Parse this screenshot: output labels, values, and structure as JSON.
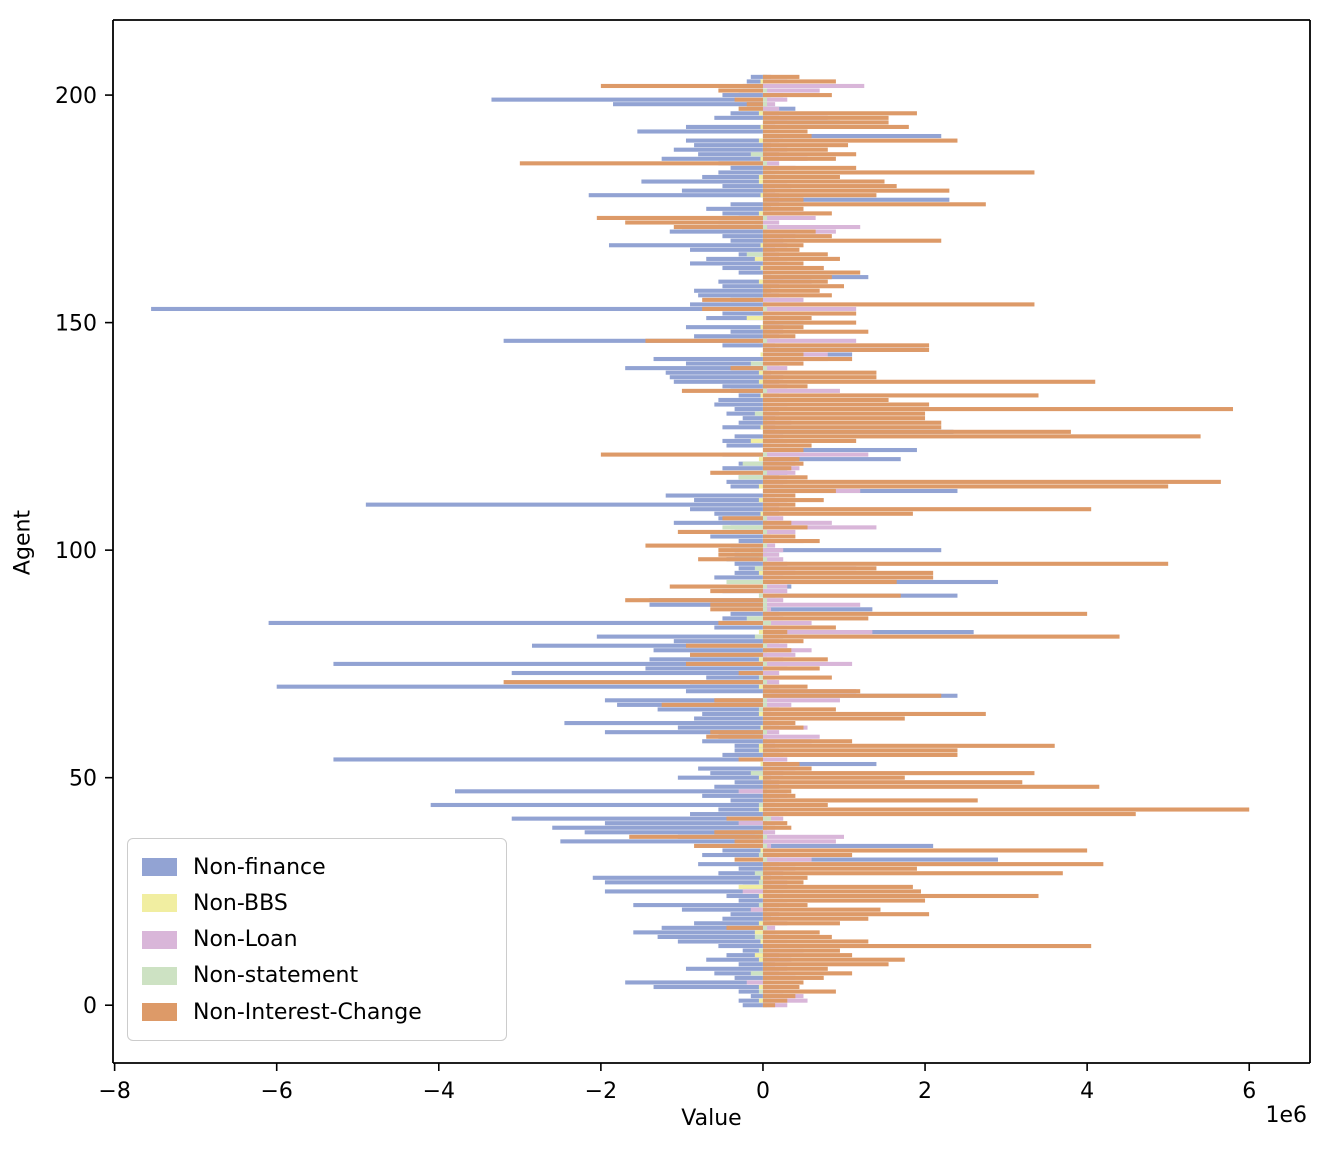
{
  "figure": {
    "xlabel": "Value",
    "ylabel": "Agent",
    "offset_text": "1e6"
  },
  "chart_data": {
    "type": "bar",
    "orientation": "horizontal",
    "title": "",
    "xlabel": "Value",
    "ylabel": "Agent",
    "unit": "1e6",
    "grid": false,
    "legend_position": "lower left",
    "xlim": [
      -8.02,
      6.75
    ],
    "ylim": [
      -12.7,
      216.5
    ],
    "xticks": [
      -8,
      -6,
      -4,
      -2,
      0,
      2,
      4,
      6
    ],
    "xtick_labels": [
      "−8",
      "−6",
      "−4",
      "−2",
      "0",
      "2",
      "4",
      "6"
    ],
    "yticks": [
      0,
      50,
      100,
      150,
      200
    ],
    "ytick_labels": [
      "0",
      "50",
      "100",
      "150",
      "200"
    ],
    "categories_note": "agents 0..204, one horizontal bar row per agent, values in millions (1e6)",
    "agent_count": 205,
    "series": [
      {
        "name": "Non-finance",
        "color": "#92a3d3",
        "values": [
          -0.25,
          -0.3,
          -0.15,
          -0.3,
          -1.35,
          -1.7,
          -0.35,
          -0.6,
          -0.95,
          -0.3,
          -0.7,
          -0.45,
          -0.25,
          -0.55,
          -1.05,
          -1.3,
          -1.6,
          -1.25,
          -0.85,
          -0.5,
          -0.4,
          -1.0,
          -1.6,
          -0.3,
          -0.45,
          -1.95,
          -0.25,
          -1.95,
          -2.1,
          -0.55,
          -0.3,
          -0.8,
          2.9,
          -0.75,
          -0.5,
          2.1,
          -2.5,
          -1.05,
          -2.2,
          -2.6,
          -1.95,
          -3.1,
          -0.9,
          -0.55,
          -4.1,
          -0.4,
          -0.75,
          -3.8,
          -0.6,
          -0.35,
          -1.05,
          -0.65,
          -0.8,
          1.4,
          -5.3,
          -0.5,
          -0.35,
          -0.35,
          -0.75,
          -0.55,
          -1.95,
          -1.05,
          -2.45,
          -0.85,
          -0.75,
          -1.3,
          -1.8,
          -1.95,
          2.4,
          -0.95,
          -6.0,
          -0.9,
          -0.7,
          -3.1,
          -1.45,
          -5.3,
          -1.4,
          -0.9,
          -1.35,
          -2.85,
          -1.1,
          -2.05,
          2.6,
          -0.6,
          -6.1,
          -0.5,
          -0.4,
          1.35,
          -1.4,
          -1.4,
          2.4,
          -0.5,
          0.35,
          2.9,
          -0.6,
          -0.35,
          -0.3,
          -0.35,
          -0.45,
          -0.35,
          2.2,
          -0.4,
          -0.3,
          -0.65,
          -0.35,
          -0.4,
          -1.1,
          -0.55,
          -0.6,
          -0.9,
          -4.9,
          -0.85,
          -1.2,
          2.4,
          -0.4,
          -0.45,
          -0.3,
          0.3,
          -0.5,
          -0.3,
          1.7,
          -0.5,
          1.9,
          -0.45,
          -0.5,
          -0.35,
          2.35,
          -0.5,
          -0.3,
          -0.25,
          -0.45,
          -0.35,
          -0.6,
          -0.55,
          -0.3,
          -0.4,
          -0.5,
          -1.1,
          -1.15,
          -1.2,
          -1.7,
          -0.95,
          -1.35,
          1.1,
          2.0,
          -0.5,
          -3.2,
          -0.85,
          -0.4,
          -0.95,
          0.5,
          -0.7,
          -0.5,
          -7.55,
          -0.9,
          -0.4,
          -0.8,
          -0.85,
          -0.5,
          -0.55,
          1.3,
          -0.3,
          -0.5,
          -0.9,
          -0.7,
          -0.3,
          -0.9,
          -1.9,
          -0.4,
          -0.5,
          -1.15,
          -1.0,
          -0.55,
          -0.3,
          -0.5,
          -0.7,
          -0.4,
          2.3,
          -2.15,
          -1.0,
          -0.5,
          -1.5,
          -0.75,
          -0.55,
          -0.4,
          -0.55,
          -1.25,
          -0.8,
          -1.1,
          -0.85,
          -0.95,
          2.2,
          -1.55,
          -0.95,
          0.95,
          -0.6,
          -0.4,
          0.4,
          -1.85,
          -3.35,
          -0.5,
          -0.3,
          -0.25,
          -0.2,
          -0.15
        ]
      },
      {
        "name": "Non-BBS",
        "color": "#f1eea1",
        "values": [
          0.05,
          -0.05,
          0.05,
          0.03,
          -0.05,
          0.05,
          0.03,
          -0.03,
          0.05,
          0.03,
          -0.05,
          -0.1,
          0.05,
          0.03,
          -0.03,
          0.05,
          -0.1,
          0.03,
          -0.05,
          0.05,
          0.03,
          -0.03,
          0.05,
          0.03,
          -0.05,
          0.05,
          -0.3,
          0.03,
          -0.03,
          0.05,
          0.03,
          0.05,
          -0.05,
          0.03,
          -0.03,
          0.05,
          0.03,
          -0.05,
          0.05,
          0.03,
          -0.03,
          0.05,
          0.03,
          -0.05,
          0.05,
          0.05,
          0.03,
          -0.03,
          0.05,
          0.03,
          -0.05,
          0.05,
          0.03,
          -0.03,
          0.05,
          0.03,
          -0.05,
          -0.05,
          0.03,
          0.05,
          0.03,
          -0.03,
          0.05,
          0.03,
          -0.05,
          0.05,
          0.03,
          -0.03,
          0.05,
          0.03,
          -0.05,
          0.05,
          0.03,
          -0.03,
          0.05,
          0.03,
          -0.05,
          0.05,
          0.03,
          -0.03,
          0.05,
          0.03,
          -0.05,
          0.05,
          0.03,
          -0.03,
          0.05,
          0.03,
          0.05,
          -0.05,
          0.05,
          0.03,
          -0.03,
          0.05,
          0.03,
          -0.05,
          0.05,
          0.03,
          -0.05,
          0.05,
          0.03,
          -0.03,
          0.05,
          0.03,
          -0.05,
          0.05,
          0.03,
          0.05,
          -0.03,
          0.05,
          0.03,
          -0.05,
          0.05,
          0.03,
          -0.05,
          0.05,
          0.03,
          -0.03,
          0.05,
          0.03,
          -0.05,
          0.05,
          0.05,
          0.03,
          -0.15,
          0.05,
          0.03,
          -0.03,
          0.05,
          0.03,
          -0.05,
          0.05,
          0.05,
          0.03,
          -0.03,
          0.05,
          0.03,
          -0.05,
          0.05,
          -0.05,
          0.03,
          0.05,
          0.03,
          -0.03,
          0.05,
          0.03,
          -0.05,
          0.05,
          0.03,
          -0.03,
          0.05,
          -0.2,
          0.03,
          0.05,
          0.03,
          -0.03,
          0.05,
          0.05,
          0.03,
          -0.05,
          0.05,
          0.03,
          -0.03,
          0.05,
          -0.1,
          0.05,
          0.03,
          -0.03,
          0.05,
          0.03,
          0.05,
          -0.03,
          0.05,
          0.03,
          -0.05,
          0.05,
          0.05,
          0.03,
          -0.03,
          0.05,
          0.03,
          -0.05,
          -0.05,
          0.03,
          0.05,
          0.03,
          -0.03,
          0.05,
          0.03,
          0.05,
          -0.05,
          0.05,
          0.03,
          -0.03,
          0.05,
          0.03,
          -0.05,
          0.05,
          0.03,
          -0.03,
          0.05,
          0.05,
          0.03,
          -0.03,
          0.03
        ]
      },
      {
        "name": "Non-Loan",
        "color": "#d9b6d9",
        "values": [
          0.3,
          0.55,
          0.5,
          0.25,
          0.2,
          -0.2,
          0.4,
          0.2,
          0.3,
          0.15,
          0.35,
          0.2,
          0.5,
          0.2,
          0.3,
          0.2,
          0.15,
          0.15,
          0.3,
          0.1,
          0.2,
          -0.15,
          0.2,
          0.3,
          0.25,
          -0.25,
          0.3,
          0.3,
          0.1,
          0.25,
          0.4,
          0.2,
          0.6,
          0.2,
          0.15,
          0.1,
          0.9,
          1.0,
          0.15,
          0.15,
          -0.3,
          0.25,
          0.2,
          0.3,
          0.15,
          0.2,
          0.3,
          -0.3,
          0.2,
          0.2,
          0.1,
          0.25,
          0.4,
          0.1,
          0.3,
          0.25,
          0.2,
          0.15,
          0.6,
          0.7,
          0.2,
          0.55,
          0.2,
          0.15,
          0.1,
          0.2,
          0.35,
          0.95,
          0.3,
          1.15,
          0.2,
          0.2,
          0.15,
          0.2,
          0.3,
          1.1,
          0.25,
          0.4,
          0.6,
          0.3,
          0.2,
          0.25,
          1.35,
          0.3,
          0.6,
          0.25,
          0.2,
          0.1,
          1.2,
          0.25,
          0.15,
          0.3,
          0.3,
          0.2,
          0.25,
          0.4,
          1.15,
          0.3,
          0.25,
          0.2,
          0.25,
          0.15,
          0.5,
          0.1,
          0.4,
          1.4,
          0.85,
          0.25,
          0.2,
          0.2,
          0.2,
          0.3,
          0.15,
          1.2,
          0.25,
          0.3,
          0.2,
          0.4,
          0.45,
          0.4,
          0.2,
          1.3,
          0.45,
          0.3,
          0.2,
          0.25,
          0.2,
          0.15,
          0.35,
          0.15,
          0.2,
          0.2,
          0.3,
          0.2,
          0.2,
          0.95,
          0.3,
          0.2,
          0.25,
          0.1,
          0.3,
          0.2,
          0.8,
          0.8,
          0.2,
          0.15,
          1.15,
          0.2,
          0.25,
          0.25,
          0.2,
          0.15,
          0.2,
          1.15,
          0.5,
          0.5,
          0.2,
          0.1,
          0.2,
          0.6,
          0.25,
          0.1,
          0.75,
          0.3,
          0.2,
          0.2,
          0.15,
          0.3,
          0.25,
          0.4,
          0.9,
          1.2,
          0.2,
          0.65,
          0.5,
          0.1,
          0.2,
          0.25,
          0.2,
          0.15,
          0.35,
          0.3,
          0.15,
          0.2,
          0.4,
          0.2,
          0.55,
          0.2,
          0.3,
          0.1,
          0.2,
          0.25,
          0.2,
          0.15,
          0.3,
          0.8,
          0.2,
          0.2,
          0.15,
          0.3,
          0.25,
          0.7,
          1.25,
          0.3,
          0.1
        ]
      },
      {
        "name": "Non-statement",
        "color": "#cde2c3",
        "values": [
          0.05,
          0.1,
          0.1,
          -0.05,
          0.05,
          0.1,
          0.05,
          -0.15,
          0.05,
          0.1,
          0.05,
          0.05,
          -0.05,
          0.1,
          0.05,
          -0.1,
          0.05,
          0.05,
          0.1,
          0.05,
          0.1,
          0.05,
          -0.05,
          0.05,
          0.1,
          0.05,
          0.1,
          -0.05,
          0.05,
          -0.1,
          0.05,
          0.1,
          0.05,
          -0.05,
          0.1,
          0.05,
          -0.1,
          0.05,
          -0.1,
          0.05,
          0.05,
          0.1,
          0.05,
          0.05,
          -0.05,
          0.1,
          0.05,
          0.05,
          0.1,
          0.05,
          0.05,
          -0.15,
          0.05,
          0.05,
          -0.05,
          0.05,
          0.1,
          0.05,
          0.05,
          -0.1,
          0.05,
          0.05,
          0.1,
          0.05,
          0.05,
          -0.05,
          0.05,
          0.05,
          0.1,
          0.05,
          0.1,
          0.05,
          -0.05,
          -0.05,
          0.05,
          0.05,
          0.05,
          -0.1,
          0.05,
          0.05,
          0.05,
          -0.1,
          0.05,
          0.05,
          0.1,
          -0.2,
          0.05,
          0.05,
          0.05,
          0.05,
          -0.05,
          -0.05,
          0.05,
          -0.45,
          0.05,
          0.05,
          -0.1,
          0.05,
          0.05,
          -0.3,
          -0.15,
          0.05,
          0.05,
          0.05,
          0.05,
          -0.5,
          0.05,
          0.05,
          0.05,
          0.1,
          0.05,
          0.05,
          0.05,
          0.05,
          0.05,
          0.05,
          -0.3,
          0.05,
          0.05,
          -0.25,
          0.05,
          0.05,
          0.05,
          0.1,
          0.05,
          0.05,
          0.05,
          0.05,
          0.05,
          0.05,
          -0.1,
          0.05,
          0.05,
          0.1,
          0.05,
          0.05,
          0.05,
          0.05,
          0.05,
          0.05,
          0.05,
          -0.15,
          0.05,
          0.1,
          0.05,
          0.05,
          0.05,
          0.05,
          0.1,
          0.05,
          0.05,
          0.05,
          0.05,
          0.05,
          0.05,
          -0.1,
          0.05,
          0.05,
          0.1,
          0.05,
          0.05,
          0.05,
          0.05,
          0.05,
          0.05,
          -0.2,
          0.05,
          0.05,
          0.05,
          0.05,
          0.05,
          0.05,
          -0.1,
          0.05,
          0.05,
          0.1,
          0.05,
          0.05,
          0.05,
          0.05,
          0.05,
          0.05,
          0.05,
          0.1,
          0.05,
          0.05,
          0.05,
          -0.15,
          0.05,
          0.05,
          0.1,
          0.05,
          0.05,
          0.05,
          0.05,
          0.05,
          0.05,
          -0.3,
          0.05,
          0.05,
          0.1,
          0.05,
          -0.1,
          0.05,
          0.05
        ]
      },
      {
        "name": "Non-Interest-Change",
        "color": "#dd9a68",
        "values": [
          0.15,
          0.3,
          0.4,
          0.9,
          0.45,
          0.5,
          0.75,
          1.1,
          0.8,
          1.55,
          1.75,
          1.1,
          0.95,
          4.05,
          1.3,
          0.85,
          0.7,
          -0.45,
          0.95,
          1.3,
          2.05,
          1.45,
          0.55,
          2.0,
          3.4,
          1.95,
          1.85,
          0.5,
          0.55,
          3.7,
          1.9,
          4.2,
          -0.35,
          1.1,
          4.0,
          -0.85,
          -0.35,
          -1.65,
          -0.6,
          0.35,
          0.3,
          -0.45,
          4.6,
          6.0,
          0.8,
          2.65,
          0.4,
          0.35,
          4.15,
          3.2,
          1.75,
          3.35,
          0.6,
          0.45,
          -0.3,
          2.4,
          2.4,
          3.6,
          1.1,
          -0.7,
          -0.65,
          0.5,
          0.4,
          1.75,
          2.75,
          0.9,
          -1.25,
          -0.6,
          2.2,
          1.2,
          0.55,
          -3.2,
          0.85,
          -0.3,
          0.7,
          -0.95,
          0.8,
          -0.9,
          0.35,
          -0.95,
          0.5,
          4.4,
          0.3,
          0.9,
          -0.55,
          1.3,
          4.0,
          -0.65,
          -0.65,
          -1.7,
          1.7,
          -0.65,
          -1.15,
          1.65,
          2.1,
          2.1,
          1.4,
          5.0,
          -0.8,
          -0.55,
          -0.55,
          -1.45,
          0.7,
          0.4,
          -1.05,
          0.55,
          0.35,
          -0.5,
          1.85,
          4.05,
          0.4,
          0.75,
          0.4,
          0.9,
          5.0,
          5.65,
          0.55,
          -0.65,
          0.35,
          0.5,
          0.45,
          -2.0,
          0.5,
          0.6,
          1.15,
          5.4,
          3.8,
          2.2,
          2.2,
          2.0,
          2.0,
          5.8,
          2.05,
          1.55,
          3.4,
          -1.0,
          0.55,
          4.1,
          1.4,
          1.4,
          -0.4,
          0.5,
          1.1,
          0.5,
          2.05,
          2.05,
          -1.45,
          0.4,
          1.3,
          0.5,
          1.15,
          0.6,
          1.15,
          -0.75,
          3.35,
          -0.75,
          0.85,
          0.7,
          1.0,
          0.8,
          0.85,
          1.2,
          0.75,
          0.5,
          0.95,
          0.8,
          0.45,
          0.5,
          2.2,
          0.85,
          0.65,
          -1.1,
          -1.7,
          -2.05,
          0.85,
          0.5,
          2.75,
          0.5,
          1.4,
          2.3,
          1.65,
          1.5,
          0.95,
          3.35,
          1.15,
          -3.0,
          0.9,
          1.15,
          0.8,
          1.05,
          2.4,
          0.6,
          0.55,
          1.8,
          1.55,
          1.55,
          1.9,
          -0.3,
          -0.2,
          -0.35,
          0.85,
          -0.55,
          -2.0,
          0.9,
          0.45
        ]
      }
    ]
  },
  "layout_colors": {
    "axis": "#000000",
    "legend_border": "#cccccc",
    "background": "#ffffff"
  }
}
